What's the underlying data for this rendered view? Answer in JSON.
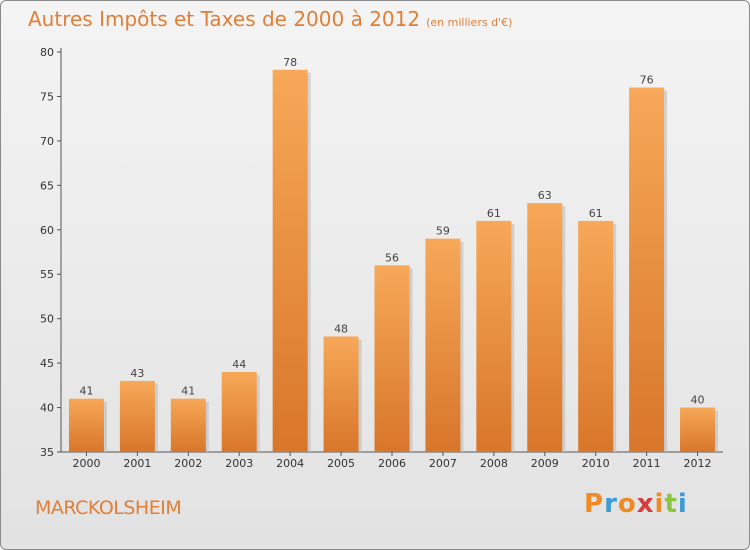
{
  "header": {
    "title": "Autres Impôts et Taxes de 2000 à 2012",
    "unit": "(en milliers d'€)"
  },
  "location": "MARCKOLSHEIM",
  "brand": {
    "letters": [
      "P",
      "r",
      "o",
      "x",
      "i",
      "t",
      "i"
    ],
    "colors": [
      "#f08a24",
      "#3b9bd6",
      "#f08a24",
      "#d63c3c",
      "#f08a24",
      "#8cc63e",
      "#3b9bd6"
    ]
  },
  "colors": {
    "bar_light": "#f7a858",
    "bar_dark": "#d8762a",
    "title": "#e07f38"
  },
  "chart_data": {
    "type": "bar",
    "title": "Autres Impôts et Taxes de 2000 à 2012",
    "subtitle": "(en milliers d'€)",
    "categories": [
      "2000",
      "2001",
      "2002",
      "2003",
      "2004",
      "2005",
      "2006",
      "2007",
      "2008",
      "2009",
      "2010",
      "2011",
      "2012"
    ],
    "values": [
      41,
      43,
      41,
      44,
      78,
      48,
      56,
      59,
      61,
      63,
      61,
      76,
      40
    ],
    "ylim": [
      35,
      80
    ],
    "yticks": [
      35,
      40,
      45,
      50,
      55,
      60,
      65,
      70,
      75,
      80
    ],
    "grid": false,
    "legend": "none"
  }
}
